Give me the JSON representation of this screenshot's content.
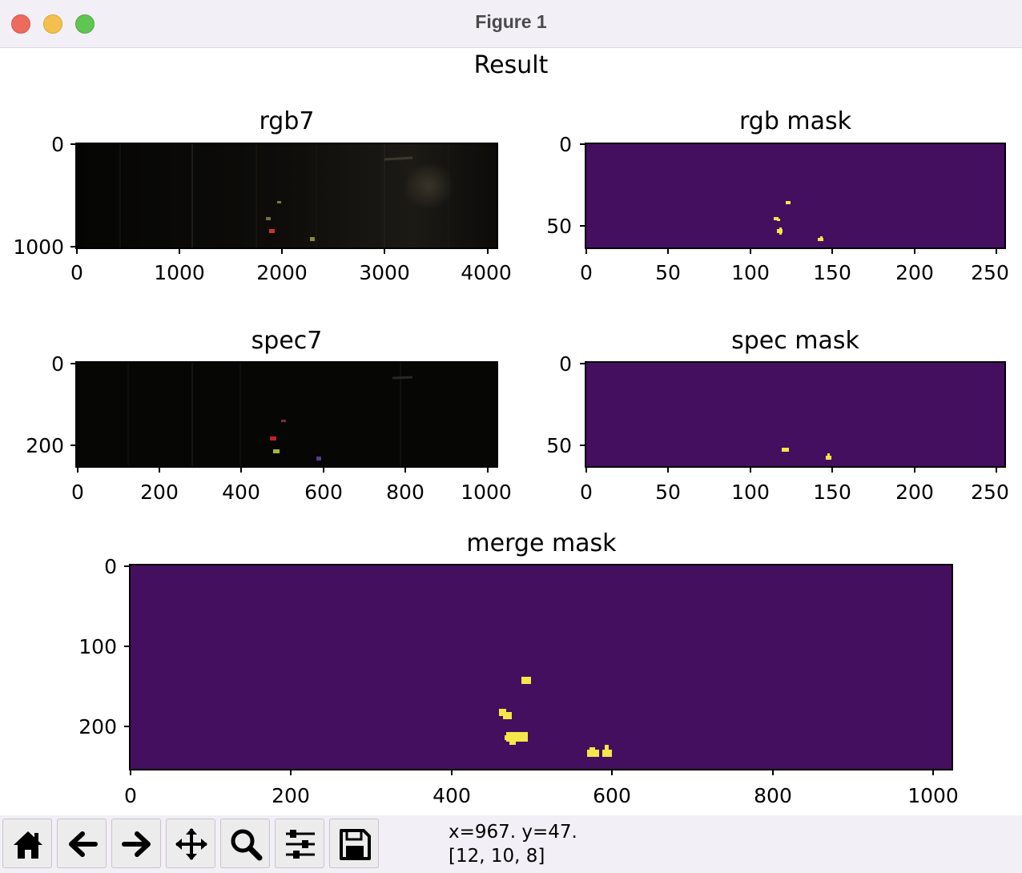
{
  "window": {
    "title": "Figure 1"
  },
  "figure": {
    "suptitle": "Result",
    "plots": [
      {
        "id": "rgb7",
        "title": "rgb7",
        "kind": "image",
        "xticks": [
          "0",
          "1000",
          "2000",
          "3000",
          "4000"
        ],
        "yticks": [
          "0",
          "1000"
        ]
      },
      {
        "id": "rgb_mask",
        "title": "rgb mask",
        "kind": "mask",
        "xticks": [
          "0",
          "50",
          "100",
          "150",
          "200",
          "250"
        ],
        "yticks": [
          "0",
          "50"
        ]
      },
      {
        "id": "spec7",
        "title": "spec7",
        "kind": "image",
        "xticks": [
          "0",
          "200",
          "400",
          "600",
          "800",
          "1000"
        ],
        "yticks": [
          "0",
          "200"
        ]
      },
      {
        "id": "spec_mask",
        "title": "spec mask",
        "kind": "mask",
        "xticks": [
          "0",
          "50",
          "100",
          "150",
          "200",
          "250"
        ],
        "yticks": [
          "0",
          "50"
        ]
      },
      {
        "id": "merge_mask",
        "title": "merge mask",
        "kind": "mask",
        "xticks": [
          "0",
          "200",
          "400",
          "600",
          "800",
          "1000"
        ],
        "yticks": [
          "0",
          "100",
          "200"
        ]
      }
    ],
    "colors": {
      "mask_background": "#450f5f",
      "mask_foreground": "#f5e64a"
    }
  },
  "toolbar": {
    "buttons": [
      {
        "name": "home-button",
        "icon": "home-icon"
      },
      {
        "name": "back-button",
        "icon": "arrow-left-icon"
      },
      {
        "name": "forward-button",
        "icon": "arrow-right-icon"
      },
      {
        "name": "pan-button",
        "icon": "move-icon"
      },
      {
        "name": "zoom-button",
        "icon": "magnifier-icon"
      },
      {
        "name": "configure-subplots-button",
        "icon": "sliders-icon"
      },
      {
        "name": "save-button",
        "icon": "floppy-disk-icon"
      }
    ],
    "coords_line1": "x=967. y=47.",
    "coords_line2": "[12, 10, 8]"
  }
}
